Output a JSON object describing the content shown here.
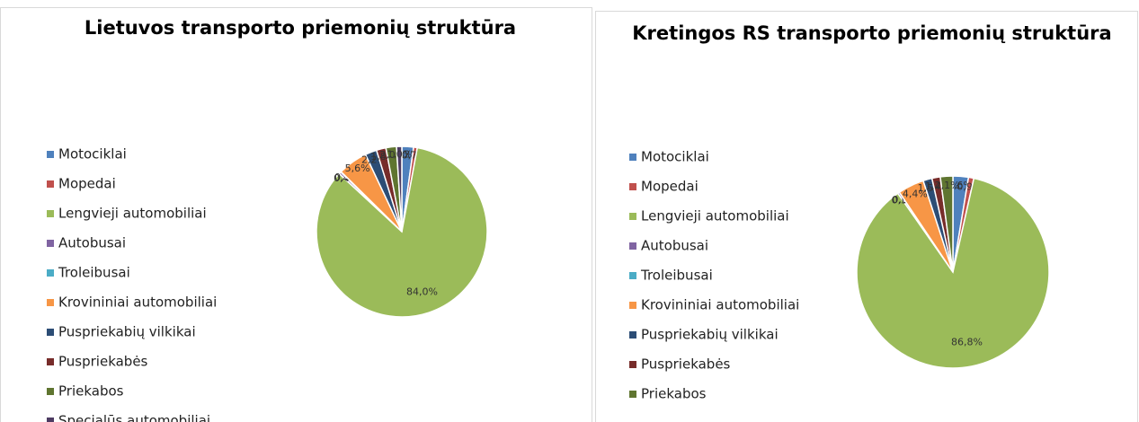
{
  "chart_data": [
    {
      "type": "pie",
      "title": "Lietuvos transporto priemonių struktūra",
      "categories": [
        "Motociklai",
        "Mopedai",
        "Lengvieji automobiliai",
        "Autobusai",
        "Troleibusai",
        "Krovininiai automobiliai",
        "Puspriekabių vilkikai",
        "Puspriekabės",
        "Priekabos",
        "Specialūs automobiliai"
      ],
      "values": [
        2.2,
        0.7,
        84.0,
        0.4,
        0.1,
        5.6,
        2.2,
        1.8,
        2.0,
        1.0
      ],
      "value_labels": [
        "2,2%",
        "0,7%",
        "84,0%",
        "0,4%",
        "0,1%",
        "5,6%",
        "2,2%",
        "1,8%",
        "2,0%",
        "1,0%"
      ],
      "colors": [
        "#4f81bd",
        "#c0504d",
        "#9bbb59",
        "#8064a2",
        "#4bacc6",
        "#f79646",
        "#2c4d75",
        "#772c2a",
        "#5f7530",
        "#4d3b62"
      ],
      "legend": "left"
    },
    {
      "type": "pie",
      "title": "Kretingos RS transporto priemonių struktūra",
      "categories": [
        "Motociklai",
        "Mopedai",
        "Lengvieji automobiliai",
        "Autobusai",
        "Troleibusai",
        "Krovininiai automobiliai",
        "Puspriekabių vilkikai",
        "Puspriekabės",
        "Priekabos"
      ],
      "values": [
        2.6,
        0.9,
        86.8,
        0.3,
        0.0,
        4.4,
        1.5,
        1.4,
        2.1
      ],
      "value_labels": [
        "2,6%",
        "0,9%",
        "86,8%",
        "0,3%",
        "0,0%",
        "4,4%",
        "1,5%",
        "1,4%",
        "2,1%"
      ],
      "colors": [
        "#4f81bd",
        "#c0504d",
        "#9bbb59",
        "#8064a2",
        "#4bacc6",
        "#f79646",
        "#2c4d75",
        "#772c2a",
        "#5f7530"
      ],
      "legend": "left"
    }
  ]
}
